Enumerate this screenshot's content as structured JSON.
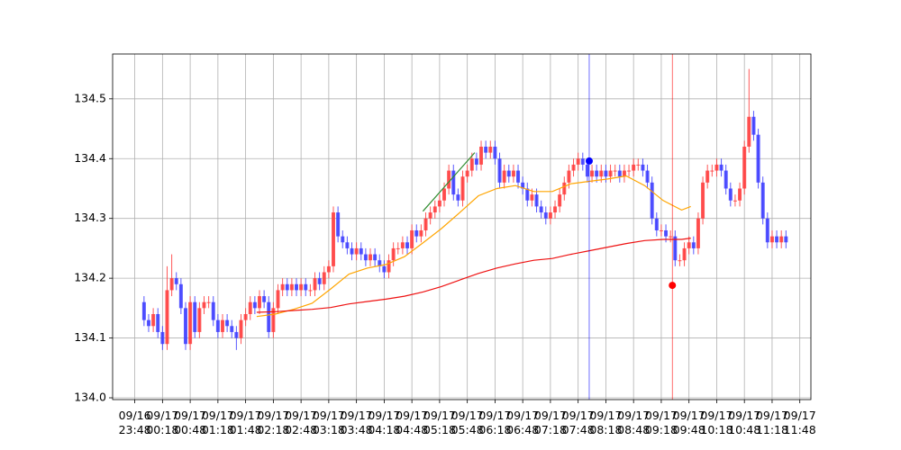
{
  "chart_data": {
    "type": "candlestick",
    "x": [
      "09/16 23:58",
      "09/17 00:03",
      "09/17 00:08",
      "09/17 00:13",
      "09/17 00:18",
      "09/17 00:23",
      "09/17 00:28",
      "09/17 00:33",
      "09/17 00:38",
      "09/17 00:43",
      "09/17 00:48",
      "09/17 00:53",
      "09/17 00:58",
      "09/17 01:03",
      "09/17 01:08",
      "09/17 01:13",
      "09/17 01:18",
      "09/17 01:23",
      "09/17 01:28",
      "09/17 01:33",
      "09/17 01:38",
      "09/17 01:43",
      "09/17 01:48",
      "09/17 01:53",
      "09/17 01:58",
      "09/17 02:03",
      "09/17 02:08",
      "09/17 02:13",
      "09/17 02:18",
      "09/17 02:23",
      "09/17 02:28",
      "09/17 02:33",
      "09/17 02:38",
      "09/17 02:43",
      "09/17 02:48",
      "09/17 02:53",
      "09/17 02:58",
      "09/17 03:03",
      "09/17 03:08",
      "09/17 03:13",
      "09/17 03:18",
      "09/17 03:23",
      "09/17 03:28",
      "09/17 03:33",
      "09/17 03:38",
      "09/17 03:43",
      "09/17 03:48",
      "09/17 03:53",
      "09/17 03:58",
      "09/17 04:03",
      "09/17 04:08",
      "09/17 04:13",
      "09/17 04:18",
      "09/17 04:23",
      "09/17 04:28",
      "09/17 04:33",
      "09/17 04:38",
      "09/17 04:43",
      "09/17 04:48",
      "09/17 04:53",
      "09/17 04:58",
      "09/17 05:03",
      "09/17 05:08",
      "09/17 05:13",
      "09/17 05:18",
      "09/17 05:23",
      "09/17 05:28",
      "09/17 05:33",
      "09/17 05:38",
      "09/17 05:43",
      "09/17 05:48",
      "09/17 05:53",
      "09/17 05:58",
      "09/17 06:03",
      "09/17 06:08",
      "09/17 06:13",
      "09/17 06:18",
      "09/17 06:23",
      "09/17 06:28",
      "09/17 06:33",
      "09/17 06:38",
      "09/17 06:43",
      "09/17 06:48",
      "09/17 06:53",
      "09/17 06:58",
      "09/17 07:03",
      "09/17 07:08",
      "09/17 07:13",
      "09/17 07:18",
      "09/17 07:23",
      "09/17 07:28",
      "09/17 07:33",
      "09/17 07:38",
      "09/17 07:43",
      "09/17 07:48",
      "09/17 07:53",
      "09/17 07:58",
      "09/17 08:03",
      "09/17 08:08",
      "09/17 08:13",
      "09/17 08:18",
      "09/17 08:23",
      "09/17 08:28",
      "09/17 08:33",
      "09/17 08:38",
      "09/17 08:43",
      "09/17 08:48",
      "09/17 08:53",
      "09/17 08:58",
      "09/17 09:03",
      "09/17 09:08",
      "09/17 09:13",
      "09/17 09:18",
      "09/17 09:23",
      "09/17 09:28",
      "09/17 09:33",
      "09/17 09:38",
      "09/17 09:43",
      "09/17 09:48",
      "09/17 09:53",
      "09/17 09:58",
      "09/17 10:03",
      "09/17 10:08",
      "09/17 10:13",
      "09/17 10:18",
      "09/17 10:23",
      "09/17 10:28",
      "09/17 10:33",
      "09/17 10:38",
      "09/17 10:43",
      "09/17 10:48",
      "09/17 10:53",
      "09/17 10:58",
      "09/17 11:03",
      "09/17 11:08",
      "09/17 11:13",
      "09/17 11:18",
      "09/17 11:23",
      "09/17 11:28",
      "09/17 11:33"
    ],
    "open": [
      134.16,
      134.13,
      134.12,
      134.14,
      134.11,
      134.09,
      134.18,
      134.2,
      134.19,
      134.15,
      134.09,
      134.16,
      134.11,
      134.15,
      134.16,
      134.16,
      134.13,
      134.11,
      134.13,
      134.12,
      134.11,
      134.1,
      134.13,
      134.14,
      134.16,
      134.15,
      134.17,
      134.16,
      134.11,
      134.15,
      134.18,
      134.19,
      134.18,
      134.19,
      134.18,
      134.19,
      134.18,
      134.18,
      134.2,
      134.19,
      134.21,
      134.22,
      134.31,
      134.27,
      134.26,
      134.25,
      134.24,
      134.25,
      134.24,
      134.23,
      134.24,
      134.23,
      134.22,
      134.21,
      134.23,
      134.25,
      134.25,
      134.26,
      134.25,
      134.28,
      134.27,
      134.28,
      134.3,
      134.31,
      134.32,
      134.33,
      134.35,
      134.38,
      134.34,
      134.33,
      134.37,
      134.38,
      134.4,
      134.39,
      134.42,
      134.41,
      134.42,
      134.4,
      134.36,
      134.38,
      134.37,
      134.38,
      134.36,
      134.35,
      134.33,
      134.34,
      134.32,
      134.31,
      134.3,
      134.31,
      134.32,
      134.34,
      134.36,
      134.38,
      134.39,
      134.4,
      134.39,
      134.37,
      134.38,
      134.37,
      134.38,
      134.37,
      134.38,
      134.38,
      134.37,
      134.38,
      134.38,
      134.39,
      134.39,
      134.38,
      134.36,
      134.3,
      134.28,
      134.28,
      134.27,
      134.27,
      134.23,
      134.23,
      134.25,
      134.26,
      134.25,
      134.3,
      134.36,
      134.38,
      134.38,
      134.39,
      134.38,
      134.35,
      134.33,
      134.33,
      134.35,
      134.42,
      134.47,
      134.44,
      134.36,
      134.3,
      134.26,
      134.27,
      134.26,
      134.27
    ],
    "high": [
      134.17,
      134.14,
      134.15,
      134.15,
      134.12,
      134.22,
      134.24,
      134.21,
      134.2,
      134.16,
      134.17,
      134.17,
      134.16,
      134.17,
      134.17,
      134.17,
      134.14,
      134.14,
      134.14,
      134.13,
      134.12,
      134.14,
      134.15,
      134.17,
      134.17,
      134.18,
      134.18,
      134.17,
      134.16,
      134.19,
      134.2,
      134.2,
      134.2,
      134.2,
      134.2,
      134.2,
      134.19,
      134.21,
      134.21,
      134.22,
      134.23,
      134.32,
      134.32,
      134.28,
      134.27,
      134.26,
      134.26,
      134.26,
      134.25,
      134.25,
      134.25,
      134.24,
      134.23,
      134.24,
      134.26,
      134.26,
      134.27,
      134.27,
      134.29,
      134.29,
      134.29,
      134.31,
      134.32,
      134.33,
      134.34,
      134.36,
      134.39,
      134.39,
      134.35,
      134.38,
      134.39,
      134.41,
      134.41,
      134.43,
      134.43,
      134.43,
      134.43,
      134.41,
      134.39,
      134.39,
      134.39,
      134.39,
      134.37,
      134.36,
      134.35,
      134.35,
      134.33,
      134.32,
      134.32,
      134.33,
      134.35,
      134.37,
      134.39,
      134.4,
      134.41,
      134.41,
      134.4,
      134.39,
      134.39,
      134.39,
      134.39,
      134.39,
      134.39,
      134.39,
      134.39,
      134.39,
      134.4,
      134.4,
      134.4,
      134.39,
      134.37,
      134.31,
      134.29,
      134.29,
      134.28,
      134.28,
      134.24,
      134.26,
      134.27,
      134.27,
      134.31,
      134.37,
      134.39,
      134.39,
      134.4,
      134.4,
      134.39,
      134.36,
      134.34,
      134.36,
      134.43,
      134.55,
      134.48,
      134.45,
      134.37,
      134.31,
      134.28,
      134.28,
      134.28,
      134.28
    ],
    "low": [
      134.12,
      134.11,
      134.11,
      134.1,
      134.08,
      134.08,
      134.17,
      134.18,
      134.14,
      134.08,
      134.08,
      134.1,
      134.1,
      134.14,
      134.15,
      134.12,
      134.1,
      134.1,
      134.11,
      134.1,
      134.08,
      134.09,
      134.12,
      134.13,
      134.14,
      134.14,
      134.15,
      134.1,
      134.1,
      134.14,
      134.17,
      134.17,
      134.17,
      134.17,
      134.17,
      134.17,
      134.17,
      134.17,
      134.18,
      134.18,
      134.2,
      134.21,
      134.26,
      134.25,
      134.24,
      134.23,
      134.23,
      134.23,
      134.22,
      134.22,
      134.22,
      134.21,
      134.2,
      134.2,
      134.22,
      134.24,
      134.24,
      134.24,
      134.24,
      134.26,
      134.26,
      134.27,
      134.29,
      134.3,
      134.31,
      134.32,
      134.34,
      134.33,
      134.32,
      134.32,
      134.36,
      134.37,
      134.38,
      134.38,
      134.4,
      134.4,
      134.39,
      134.35,
      134.35,
      134.36,
      134.36,
      134.35,
      134.34,
      134.32,
      134.32,
      134.31,
      134.3,
      134.29,
      134.29,
      134.3,
      134.31,
      134.33,
      134.35,
      134.37,
      134.38,
      134.38,
      134.36,
      134.36,
      134.36,
      134.36,
      134.36,
      134.36,
      134.37,
      134.36,
      134.36,
      134.37,
      134.37,
      134.38,
      134.37,
      134.35,
      134.29,
      134.27,
      134.27,
      134.26,
      134.26,
      134.22,
      134.22,
      134.22,
      134.24,
      134.24,
      134.24,
      134.29,
      134.35,
      134.37,
      134.37,
      134.37,
      134.34,
      134.32,
      134.32,
      134.32,
      134.34,
      134.41,
      134.43,
      134.35,
      134.29,
      134.25,
      134.25,
      134.25,
      134.25,
      134.25
    ],
    "close": [
      134.13,
      134.12,
      134.14,
      134.11,
      134.09,
      134.18,
      134.2,
      134.19,
      134.15,
      134.09,
      134.16,
      134.11,
      134.15,
      134.16,
      134.16,
      134.13,
      134.11,
      134.13,
      134.12,
      134.11,
      134.1,
      134.13,
      134.14,
      134.16,
      134.15,
      134.17,
      134.16,
      134.11,
      134.15,
      134.18,
      134.19,
      134.18,
      134.19,
      134.18,
      134.19,
      134.18,
      134.18,
      134.2,
      134.19,
      134.21,
      134.22,
      134.31,
      134.27,
      134.26,
      134.25,
      134.24,
      134.25,
      134.24,
      134.23,
      134.24,
      134.23,
      134.22,
      134.21,
      134.23,
      134.25,
      134.25,
      134.26,
      134.25,
      134.28,
      134.27,
      134.28,
      134.3,
      134.31,
      134.32,
      134.33,
      134.35,
      134.38,
      134.34,
      134.33,
      134.37,
      134.38,
      134.4,
      134.39,
      134.42,
      134.41,
      134.42,
      134.4,
      134.36,
      134.38,
      134.37,
      134.38,
      134.36,
      134.35,
      134.33,
      134.34,
      134.32,
      134.31,
      134.3,
      134.31,
      134.32,
      134.34,
      134.36,
      134.38,
      134.39,
      134.4,
      134.39,
      134.37,
      134.38,
      134.37,
      134.38,
      134.37,
      134.38,
      134.38,
      134.37,
      134.38,
      134.38,
      134.39,
      134.39,
      134.38,
      134.36,
      134.3,
      134.28,
      134.28,
      134.27,
      134.27,
      134.23,
      134.23,
      134.25,
      134.26,
      134.25,
      134.3,
      134.36,
      134.38,
      134.38,
      134.39,
      134.38,
      134.35,
      134.33,
      134.33,
      134.35,
      134.42,
      134.47,
      134.44,
      134.36,
      134.3,
      134.26,
      134.27,
      134.26,
      134.27,
      134.26
    ],
    "up_color": "#ff3b3b",
    "down_color": "#3b3bff",
    "lines": [
      {
        "color": "#ffa500",
        "x": [
          "09/17 02:00",
          "09/17 02:20",
          "09/17 02:40",
          "09/17 03:00",
          "09/17 03:20",
          "09/17 03:40",
          "09/17 04:00",
          "09/17 04:20",
          "09/17 04:40",
          "09/17 05:00",
          "09/17 05:20",
          "09/17 05:40",
          "09/17 06:00",
          "09/17 06:20",
          "09/17 06:40",
          "09/17 07:00",
          "09/17 07:20",
          "09/17 07:40",
          "09/17 08:00",
          "09/17 08:20",
          "09/17 08:40",
          "09/17 09:00",
          "09/17 09:20",
          "09/17 09:40",
          "09/17 09:50"
        ],
        "values": [
          134.136,
          134.14,
          134.148,
          134.158,
          134.182,
          134.207,
          134.217,
          134.223,
          134.236,
          134.259,
          134.283,
          134.31,
          134.338,
          134.35,
          134.355,
          134.345,
          134.345,
          134.358,
          134.362,
          134.366,
          134.371,
          134.355,
          134.33,
          134.314,
          134.32
        ]
      },
      {
        "color": "#ee1111",
        "x": [
          "09/17 02:00",
          "09/17 02:20",
          "09/17 02:40",
          "09/17 03:00",
          "09/17 03:20",
          "09/17 03:40",
          "09/17 04:00",
          "09/17 04:20",
          "09/17 04:40",
          "09/17 05:00",
          "09/17 05:20",
          "09/17 05:40",
          "09/17 06:00",
          "09/17 06:20",
          "09/17 06:40",
          "09/17 07:00",
          "09/17 07:20",
          "09/17 07:40",
          "09/17 08:00",
          "09/17 08:20",
          "09/17 08:40",
          "09/17 09:00",
          "09/17 09:20",
          "09/17 09:40",
          "09/17 09:50"
        ],
        "values": [
          134.143,
          134.144,
          134.146,
          134.148,
          134.151,
          134.157,
          134.161,
          134.165,
          134.17,
          134.177,
          134.186,
          134.197,
          134.208,
          134.217,
          134.224,
          134.23,
          134.233,
          134.24,
          134.246,
          134.252,
          134.258,
          134.263,
          134.265,
          134.265,
          134.267
        ]
      },
      {
        "color": "#2e8b2e",
        "x": [
          "09/17 05:00",
          "09/17 05:56"
        ],
        "values": [
          134.312,
          134.41
        ]
      }
    ],
    "vlines": [
      {
        "x": "09/17 08:00",
        "color": "#0000ff"
      },
      {
        "x": "09/17 09:30",
        "color": "#ff0000"
      }
    ],
    "markers": [
      {
        "x": "09/17 08:00",
        "value": 134.396,
        "color": "#0000ff"
      },
      {
        "x": "09/17 09:30",
        "value": 134.188,
        "color": "#ff0000"
      }
    ],
    "xlim": [
      "09/16 23:24",
      "09/17 12:00"
    ],
    "xticks": [
      "09/16 23:48",
      "09/17 00:18",
      "09/17 00:48",
      "09/17 01:18",
      "09/17 01:48",
      "09/17 02:18",
      "09/17 02:48",
      "09/17 03:18",
      "09/17 03:48",
      "09/17 04:18",
      "09/17 04:48",
      "09/17 05:18",
      "09/17 05:48",
      "09/17 06:18",
      "09/17 06:48",
      "09/17 07:18",
      "09/17 07:48",
      "09/17 08:18",
      "09/17 08:48",
      "09/17 09:18",
      "09/17 09:48",
      "09/17 10:18",
      "09/17 10:48",
      "09/17 11:18",
      "09/17 11:48"
    ],
    "ylim": [
      133.997,
      134.575
    ],
    "yticks": [
      {
        "value": 134,
        "label": "134.0"
      },
      134.1,
      134.2,
      134.3,
      134.4,
      134.5
    ],
    "grid": true
  }
}
